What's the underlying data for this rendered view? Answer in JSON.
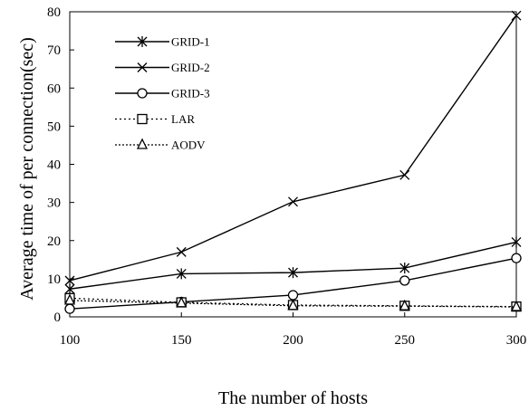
{
  "chart_data": {
    "type": "line",
    "xlabel": "The number of hosts",
    "ylabel": "Average time of per connection(sec)",
    "xlim": [
      100,
      300
    ],
    "ylim": [
      0,
      80
    ],
    "x_ticks": [
      100,
      150,
      200,
      250,
      300
    ],
    "y_ticks": [
      0,
      10,
      20,
      30,
      40,
      50,
      60,
      70,
      80
    ],
    "x_tick_labels": [
      "100",
      "150",
      "200",
      "250",
      "300"
    ],
    "y_tick_labels": [
      "0",
      "10",
      "20",
      "30",
      "40",
      "50",
      "60",
      "70",
      "80"
    ],
    "grid": false,
    "legend_position": "top-left",
    "x": [
      100,
      150,
      200,
      250,
      300
    ],
    "series": [
      {
        "name": "GRID-1",
        "marker": "asterisk",
        "line": "solid",
        "values": [
          7.3,
          11.3,
          11.6,
          12.8,
          19.6
        ]
      },
      {
        "name": "GRID-2",
        "marker": "x",
        "line": "solid",
        "values": [
          9.5,
          17.0,
          30.2,
          37.2,
          79.0
        ]
      },
      {
        "name": "GRID-3",
        "marker": "circle",
        "line": "solid",
        "values": [
          2.1,
          3.9,
          5.7,
          9.5,
          15.4
        ]
      },
      {
        "name": "LAR",
        "marker": "square",
        "line": "dotted",
        "values": [
          4.9,
          3.8,
          3.1,
          2.9,
          2.7
        ]
      },
      {
        "name": "AODV",
        "marker": "triangle",
        "line": "dashed",
        "values": [
          4.3,
          3.6,
          2.9,
          2.8,
          2.6
        ]
      }
    ]
  }
}
